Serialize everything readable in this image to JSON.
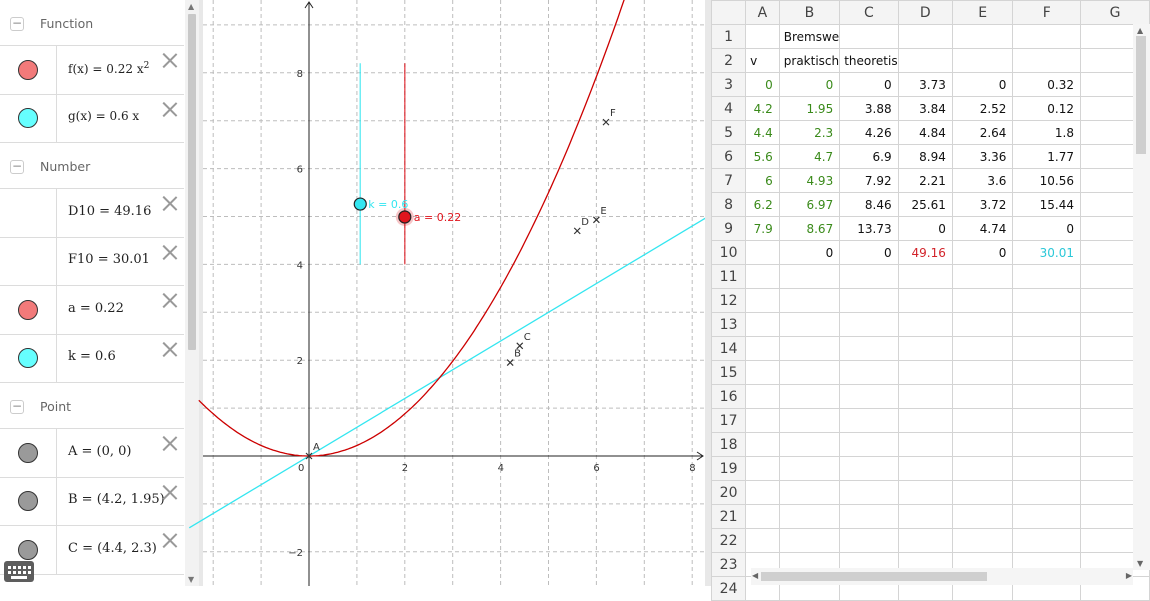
{
  "algebra": {
    "categories": {
      "function": "Function",
      "number": "Number",
      "point": "Point"
    },
    "items": {
      "f": {
        "name": "f(x)",
        "eq": "=",
        "coef": "0.22",
        "var": "x",
        "exp": "2",
        "color": "#f27a7a"
      },
      "g": {
        "text": "g(x)  =  0.6 x",
        "color": "#66ffff"
      },
      "d10": {
        "text": "D10  =  49.16"
      },
      "f10": {
        "text": "F10  =  30.01"
      },
      "a": {
        "text": "a  =  0.22",
        "color": "#f27a7a"
      },
      "k": {
        "text": "k  =  0.6",
        "color": "#66ffff"
      },
      "A": {
        "text": "A  =  (0, 0)",
        "color": "#9a9a9a"
      },
      "B": {
        "text": "B  =  (4.2, 1.95)",
        "color": "#9a9a9a"
      },
      "C": {
        "text": "C  =  (4.4, 2.3)",
        "color": "#9a9a9a"
      }
    }
  },
  "graphics": {
    "x_ticks": [
      "0",
      "2",
      "4",
      "6",
      "8"
    ],
    "y_ticks": [
      "8",
      "6",
      "4",
      "2",
      "−2"
    ],
    "points": [
      {
        "label": "A",
        "x": 0,
        "y": 0
      },
      {
        "label": "B",
        "x": 4.2,
        "y": 1.95
      },
      {
        "label": "C",
        "x": 4.4,
        "y": 2.3
      },
      {
        "label": "D",
        "x": 5.6,
        "y": 4.7
      },
      {
        "label": "E",
        "x": 6,
        "y": 4.93
      },
      {
        "label": "F",
        "x": 6.2,
        "y": 6.97
      }
    ],
    "slider_k": {
      "label": "k = 0.6",
      "value": 0.6,
      "color": "#33e6f0"
    },
    "slider_a": {
      "label": "a = 0.22",
      "value": 0.22,
      "color": "#e0161e"
    },
    "f_color": "#cc0000",
    "g_color": "#33e6f0"
  },
  "sheet": {
    "columns": [
      "A",
      "B",
      "C",
      "D",
      "E",
      "F",
      "G"
    ],
    "rows": [
      {
        "n": "1",
        "cells": [
          "",
          "Bremswe",
          "",
          "",
          "",
          "",
          ""
        ]
      },
      {
        "n": "2",
        "cells": [
          "v",
          "praktisch",
          "theoretis",
          "",
          "",
          "",
          ""
        ]
      },
      {
        "n": "3",
        "cells": [
          "0",
          "0",
          "0",
          "3.73",
          "0",
          "0.32",
          ""
        ]
      },
      {
        "n": "4",
        "cells": [
          "4.2",
          "1.95",
          "3.88",
          "3.84",
          "2.52",
          "0.12",
          ""
        ]
      },
      {
        "n": "5",
        "cells": [
          "4.4",
          "2.3",
          "4.26",
          "4.84",
          "2.64",
          "1.8",
          ""
        ]
      },
      {
        "n": "6",
        "cells": [
          "5.6",
          "4.7",
          "6.9",
          "8.94",
          "3.36",
          "1.77",
          ""
        ]
      },
      {
        "n": "7",
        "cells": [
          "6",
          "4.93",
          "7.92",
          "2.21",
          "3.6",
          "10.56",
          ""
        ]
      },
      {
        "n": "8",
        "cells": [
          "6.2",
          "6.97",
          "8.46",
          "25.61",
          "3.72",
          "15.44",
          ""
        ]
      },
      {
        "n": "9",
        "cells": [
          "7.9",
          "8.67",
          "13.73",
          "0",
          "4.74",
          "0",
          ""
        ]
      },
      {
        "n": "10",
        "cells": [
          "",
          "0",
          "0",
          "49.16",
          "0",
          "30.01",
          ""
        ]
      },
      {
        "n": "11",
        "cells": [
          "",
          "",
          "",
          "",
          "",
          "",
          ""
        ]
      },
      {
        "n": "12",
        "cells": [
          "",
          "",
          "",
          "",
          "",
          "",
          ""
        ]
      },
      {
        "n": "13",
        "cells": [
          "",
          "",
          "",
          "",
          "",
          "",
          ""
        ]
      },
      {
        "n": "14",
        "cells": [
          "",
          "",
          "",
          "",
          "",
          "",
          ""
        ]
      },
      {
        "n": "15",
        "cells": [
          "",
          "",
          "",
          "",
          "",
          "",
          ""
        ]
      },
      {
        "n": "16",
        "cells": [
          "",
          "",
          "",
          "",
          "",
          "",
          ""
        ]
      },
      {
        "n": "17",
        "cells": [
          "",
          "",
          "",
          "",
          "",
          "",
          ""
        ]
      },
      {
        "n": "18",
        "cells": [
          "",
          "",
          "",
          "",
          "",
          "",
          ""
        ]
      },
      {
        "n": "19",
        "cells": [
          "",
          "",
          "",
          "",
          "",
          "",
          ""
        ]
      },
      {
        "n": "20",
        "cells": [
          "",
          "",
          "",
          "",
          "",
          "",
          ""
        ]
      },
      {
        "n": "21",
        "cells": [
          "",
          "",
          "",
          "",
          "",
          "",
          ""
        ]
      },
      {
        "n": "22",
        "cells": [
          "",
          "",
          "",
          "",
          "",
          "",
          ""
        ]
      },
      {
        "n": "23",
        "cells": [
          "",
          "",
          "",
          "",
          "",
          "",
          ""
        ]
      },
      {
        "n": "24",
        "cells": [
          "",
          "",
          "",
          "",
          "",
          "",
          ""
        ]
      }
    ]
  }
}
